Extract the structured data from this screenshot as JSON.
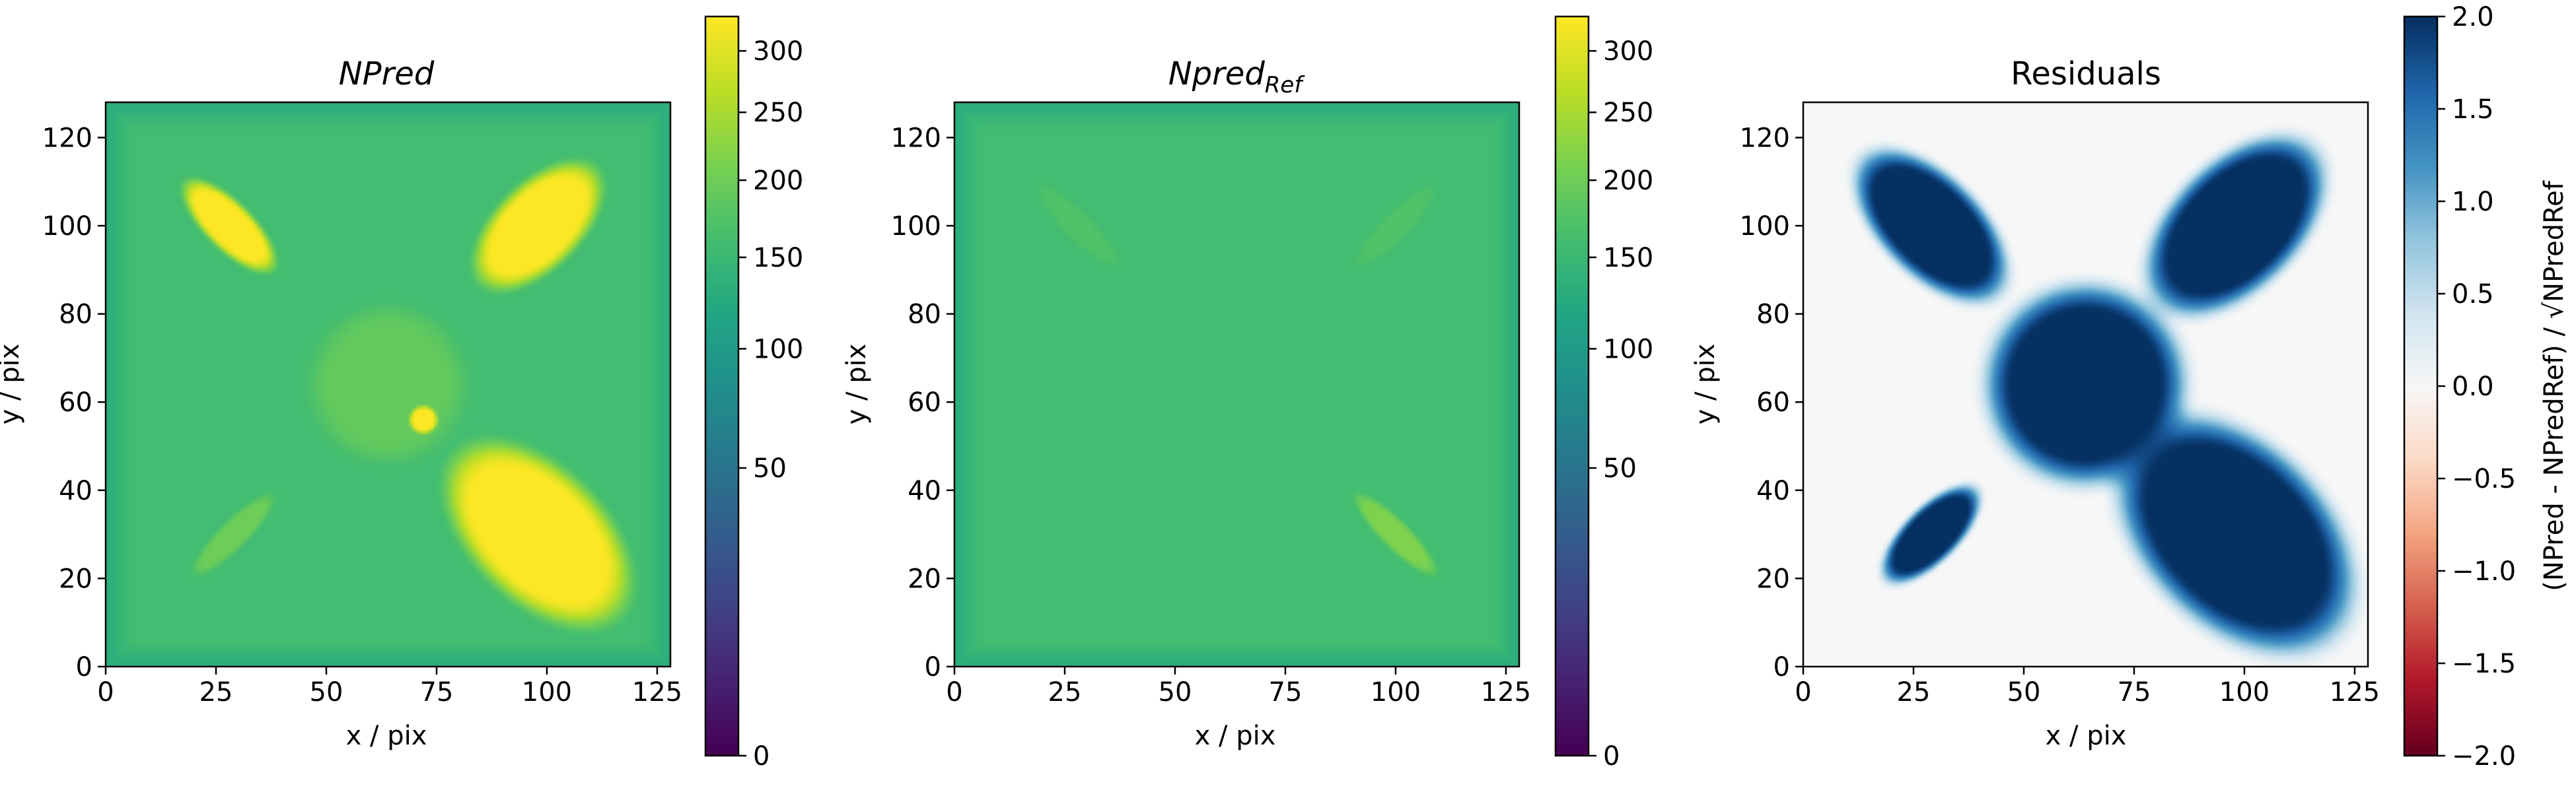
{
  "chart_data": [
    {
      "type": "heatmap",
      "title": "NPred",
      "title_italic": true,
      "xlabel": "x / pix",
      "ylabel": "y / pix",
      "xlim": [
        0,
        128
      ],
      "ylim": [
        0,
        128
      ],
      "xticks": [
        0,
        25,
        50,
        75,
        100,
        125
      ],
      "yticks": [
        0,
        20,
        40,
        60,
        80,
        100,
        120
      ],
      "colormap": "viridis",
      "color_scale": "sqrt",
      "colorbar": {
        "range": [
          0,
          330
        ],
        "ticks": [
          0,
          50,
          100,
          150,
          200,
          250,
          300
        ]
      },
      "background_level": 160,
      "features": [
        {
          "shape": "ellipse",
          "center": [
            28,
            100
          ],
          "radius_major": 13,
          "radius_minor": 5,
          "angle_deg": -45,
          "peak": 330
        },
        {
          "shape": "ellipse",
          "center": [
            98,
            100
          ],
          "radius_major": 17,
          "radius_minor": 9,
          "angle_deg": 45,
          "peak": 330
        },
        {
          "shape": "ellipse",
          "center": [
            98,
            30
          ],
          "radius_major": 24,
          "radius_minor": 14,
          "angle_deg": -45,
          "peak": 330
        },
        {
          "shape": "ellipse",
          "center": [
            29,
            30
          ],
          "radius_major": 12,
          "radius_minor": 3,
          "angle_deg": 45,
          "peak": 200
        },
        {
          "shape": "disk",
          "center": [
            64,
            64
          ],
          "radius": 17,
          "peak": 190
        },
        {
          "shape": "point",
          "center": [
            72,
            56
          ],
          "radius": 3,
          "peak": 330
        }
      ]
    },
    {
      "type": "heatmap",
      "title": "Npred",
      "title_subscript": "Ref",
      "title_italic": true,
      "xlabel": "x / pix",
      "ylabel": "y / pix",
      "xlim": [
        0,
        128
      ],
      "ylim": [
        0,
        128
      ],
      "xticks": [
        0,
        25,
        50,
        75,
        100,
        125
      ],
      "yticks": [
        0,
        20,
        40,
        60,
        80,
        100,
        120
      ],
      "colormap": "viridis",
      "color_scale": "sqrt",
      "colorbar": {
        "range": [
          0,
          330
        ],
        "ticks": [
          0,
          50,
          100,
          150,
          200,
          250,
          300
        ]
      },
      "background_level": 160,
      "features": [
        {
          "shape": "ellipse",
          "center": [
            100,
            30
          ],
          "radius_major": 12,
          "radius_minor": 3,
          "angle_deg": -45,
          "peak": 215
        },
        {
          "shape": "ellipse",
          "center": [
            28,
            100
          ],
          "radius_major": 12,
          "radius_minor": 3,
          "angle_deg": -45,
          "peak": 172
        },
        {
          "shape": "ellipse",
          "center": [
            100,
            100
          ],
          "radius_major": 12,
          "radius_minor": 3,
          "angle_deg": 45,
          "peak": 172
        }
      ]
    },
    {
      "type": "heatmap",
      "title": "Residuals",
      "xlabel": "x / pix",
      "ylabel": "y / pix",
      "xlim": [
        0,
        128
      ],
      "ylim": [
        0,
        128
      ],
      "xticks": [
        0,
        25,
        50,
        75,
        100,
        125
      ],
      "yticks": [
        0,
        20,
        40,
        60,
        80,
        100,
        120
      ],
      "colormap": "RdBu",
      "colorbar": {
        "range": [
          -2.0,
          2.0
        ],
        "ticks": [
          -2.0,
          -1.5,
          -1.0,
          -0.5,
          0.0,
          0.5,
          1.0,
          1.5,
          2.0
        ],
        "tick_labels": [
          "−2.0",
          "−1.5",
          "−1.0",
          "−0.5",
          "0.0",
          "0.5",
          "1.0",
          "1.5",
          "2.0"
        ],
        "label": "(NPred - NPredRef) / √NPredRef"
      },
      "background_level": 0.0,
      "features": [
        {
          "shape": "ellipse",
          "center": [
            29,
            100
          ],
          "radius_major": 21,
          "radius_minor": 11,
          "angle_deg": -45,
          "peak": 2.0
        },
        {
          "shape": "ellipse",
          "center": [
            98,
            100
          ],
          "radius_major": 24,
          "radius_minor": 14,
          "angle_deg": 45,
          "peak": 2.0
        },
        {
          "shape": "disk",
          "center": [
            64,
            64
          ],
          "radius": 22,
          "peak": 2.0
        },
        {
          "shape": "ellipse",
          "center": [
            98,
            30
          ],
          "radius_major": 31,
          "radius_minor": 20,
          "angle_deg": -45,
          "peak": 2.0
        },
        {
          "shape": "ellipse",
          "center": [
            29,
            30
          ],
          "radius_major": 14,
          "radius_minor": 6,
          "angle_deg": 45,
          "peak": 2.0
        }
      ]
    }
  ]
}
